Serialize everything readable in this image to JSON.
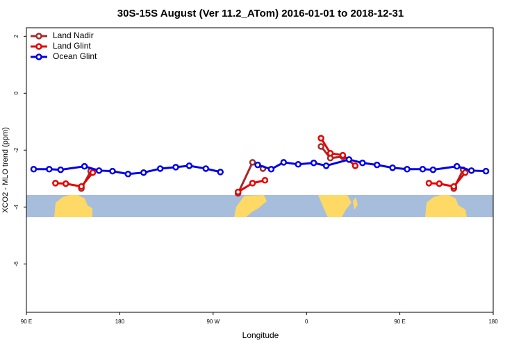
{
  "chart_data": {
    "type": "line",
    "title": "30S-15S August (Ver 11.2_ATom)   2016-01-01 to 2018-12-31",
    "xlabel": "Longitude",
    "ylabel": "XCO2 - MLO trend (ppm)",
    "xlim": [
      90,
      540
    ],
    "ylim": [
      -7.7,
      2.3
    ],
    "xticks": [
      {
        "value": 90,
        "label": "90 E"
      },
      180,
      {
        "value": 270,
        "label": "90 W"
      },
      {
        "value": 360,
        "label": "0"
      },
      {
        "value": 450,
        "label": "90 E"
      },
      {
        "value": 540,
        "label": "180"
      }
    ],
    "yticks": [
      2,
      0,
      -2,
      -4,
      -6
    ],
    "legend": "top-left",
    "series": [
      {
        "name": "Land Nadir",
        "color": "#a52a2a",
        "x": [
          143,
          152,
          null,
          294,
          308,
          318,
          null,
          374,
          383,
          395,
          null,
          502,
          511
        ],
        "values": [
          -3.35,
          -2.74,
          null,
          -3.52,
          -2.43,
          -2.65,
          null,
          -1.87,
          -2.28,
          -2.23,
          null,
          -3.35,
          -2.69
        ]
      },
      {
        "name": "Land Glint",
        "color": "#e60000",
        "x": [
          118,
          128,
          143,
          154,
          null,
          294,
          308,
          320,
          null,
          374,
          383,
          395,
          407,
          null,
          478,
          488,
          502,
          513
        ],
        "values": [
          -3.16,
          -3.18,
          -3.28,
          -2.79,
          null,
          -3.47,
          -3.16,
          -3.06,
          null,
          -1.58,
          -2.11,
          -2.18,
          -2.55,
          null,
          -3.16,
          -3.18,
          -3.28,
          -2.79
        ]
      },
      {
        "name": "Ocean Glint",
        "color": "#0000e6",
        "x": [
          97,
          112,
          123,
          146,
          160,
          173,
          188,
          203,
          219,
          234,
          247,
          263,
          277,
          null,
          313,
          326,
          338,
          352,
          367,
          379,
          401,
          414,
          428,
          443,
          457,
          472,
          482,
          505,
          519,
          533
        ],
        "values": [
          -2.67,
          -2.67,
          -2.69,
          -2.57,
          -2.72,
          -2.74,
          -2.84,
          -2.79,
          -2.65,
          -2.6,
          -2.55,
          -2.65,
          -2.77,
          null,
          -2.52,
          -2.67,
          -2.43,
          -2.5,
          -2.45,
          -2.55,
          -2.33,
          -2.45,
          -2.52,
          -2.62,
          -2.67,
          -2.67,
          -2.69,
          -2.57,
          -2.72,
          -2.74
        ]
      }
    ]
  }
}
